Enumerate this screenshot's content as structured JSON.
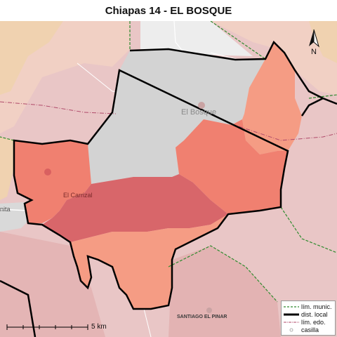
{
  "title": "Chiapas 14 - EL BOSQUE",
  "north_label": "N",
  "scale": {
    "label": "5 km"
  },
  "places": {
    "main": "El Bosque",
    "secondary": "El Carrizal",
    "edge": "nita",
    "bottom": "SANTIAGO EL PINAR"
  },
  "legend": {
    "items": [
      {
        "label": "lím. munic.",
        "color": "#2e8b2e",
        "style": "dashed"
      },
      {
        "label": "dist. local",
        "color": "#000000",
        "style": "thick"
      },
      {
        "label": "lím. edo.",
        "color": "#b04a6a",
        "style": "dashdot"
      },
      {
        "label": "casilla",
        "color": "#ffffff",
        "style": "dot"
      }
    ]
  },
  "colors": {
    "background": "#e9c6c6",
    "muted_gray": "#d3d3d3",
    "district_light": "#f59c84",
    "district_mid": "#f08070",
    "district_dark": "#d8666a",
    "boundary_district": "#000000",
    "boundary_municipal": "#2e8b2e",
    "boundary_state": "#b04a6a"
  }
}
